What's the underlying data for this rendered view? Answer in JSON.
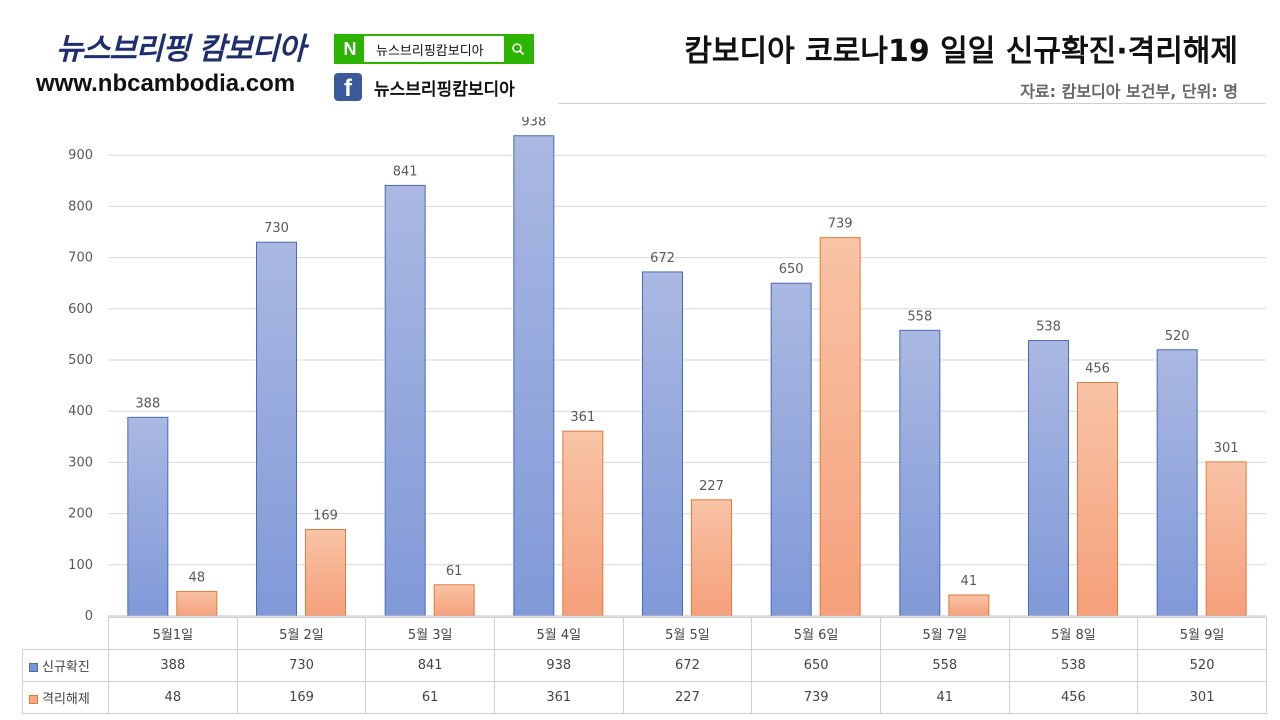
{
  "brand": {
    "name": "뉴스브리핑 캄보디아",
    "url": "www.nbcambodia.com",
    "naver_logo": "N",
    "naver_search_text": "뉴스브리핑캄보디아",
    "facebook_logo": "f",
    "facebook_page": "뉴스브리핑캄보디아"
  },
  "chart_data": {
    "type": "bar",
    "title": "캄보디아 코로나19 일일 신규확진·격리해제",
    "subtitle": "자료: 캄보디아 보건부, 단위: 명",
    "categories": [
      "5월1일",
      "5월 2일",
      "5월 3일",
      "5월 4일",
      "5월 5일",
      "5월 6일",
      "5월 7일",
      "5월 8일",
      "5월 9일"
    ],
    "series": [
      {
        "name": "신규확진",
        "values": [
          388,
          730,
          841,
          938,
          672,
          650,
          558,
          538,
          520
        ],
        "color": "#8fa5dc",
        "border": "#4a6ab5"
      },
      {
        "name": "격리해제",
        "values": [
          48,
          169,
          61,
          361,
          227,
          739,
          41,
          456,
          301
        ],
        "color": "#f6ad88",
        "border": "#e07b39"
      }
    ],
    "ylim": [
      0,
      900
    ],
    "yticks": [
      0,
      100,
      200,
      300,
      400,
      500,
      600,
      700,
      800,
      900
    ],
    "grid": true,
    "legend": "data-table"
  }
}
